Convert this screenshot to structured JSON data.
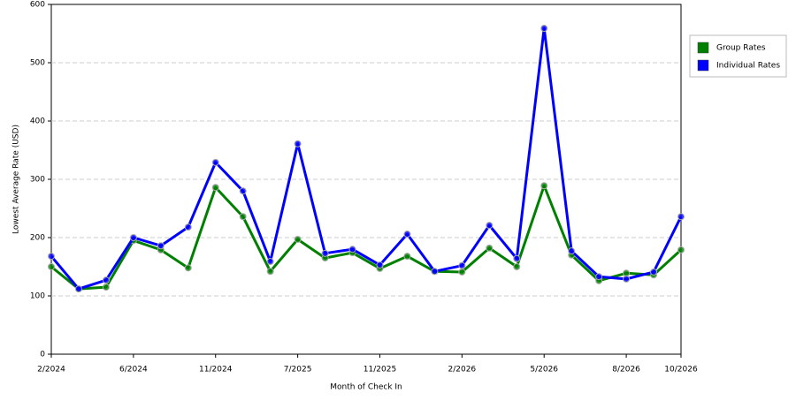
{
  "chart_data": {
    "type": "line",
    "x_label": "Month of Check In",
    "y_label": "Lowest Average Rate (USD)",
    "categories": [
      "2/2024",
      null,
      null,
      "6/2024",
      null,
      null,
      "11/2024",
      null,
      null,
      "7/2025",
      null,
      null,
      "11/2025",
      null,
      null,
      "2/2026",
      null,
      null,
      "5/2026",
      null,
      null,
      "8/2026",
      null,
      "10/2026"
    ],
    "series": [
      {
        "name": "Group Rates",
        "color": "#008000",
        "values": [
          150,
          112,
          115,
          195,
          179,
          148,
          286,
          236,
          142,
          197,
          165,
          174,
          147,
          168,
          142,
          141,
          182,
          150,
          289,
          170,
          126,
          139,
          136,
          179
        ]
      },
      {
        "name": "Individual Rates",
        "color": "#0000ff",
        "values": [
          168,
          112,
          127,
          200,
          186,
          218,
          329,
          280,
          159,
          361,
          173,
          180,
          153,
          206,
          142,
          152,
          221,
          164,
          559,
          177,
          133,
          129,
          141,
          236
        ]
      }
    ],
    "ylim": [
      0,
      600
    ],
    "yticks": [
      0,
      100,
      200,
      300,
      400,
      500,
      600
    ],
    "grid": true,
    "legend": "right"
  }
}
